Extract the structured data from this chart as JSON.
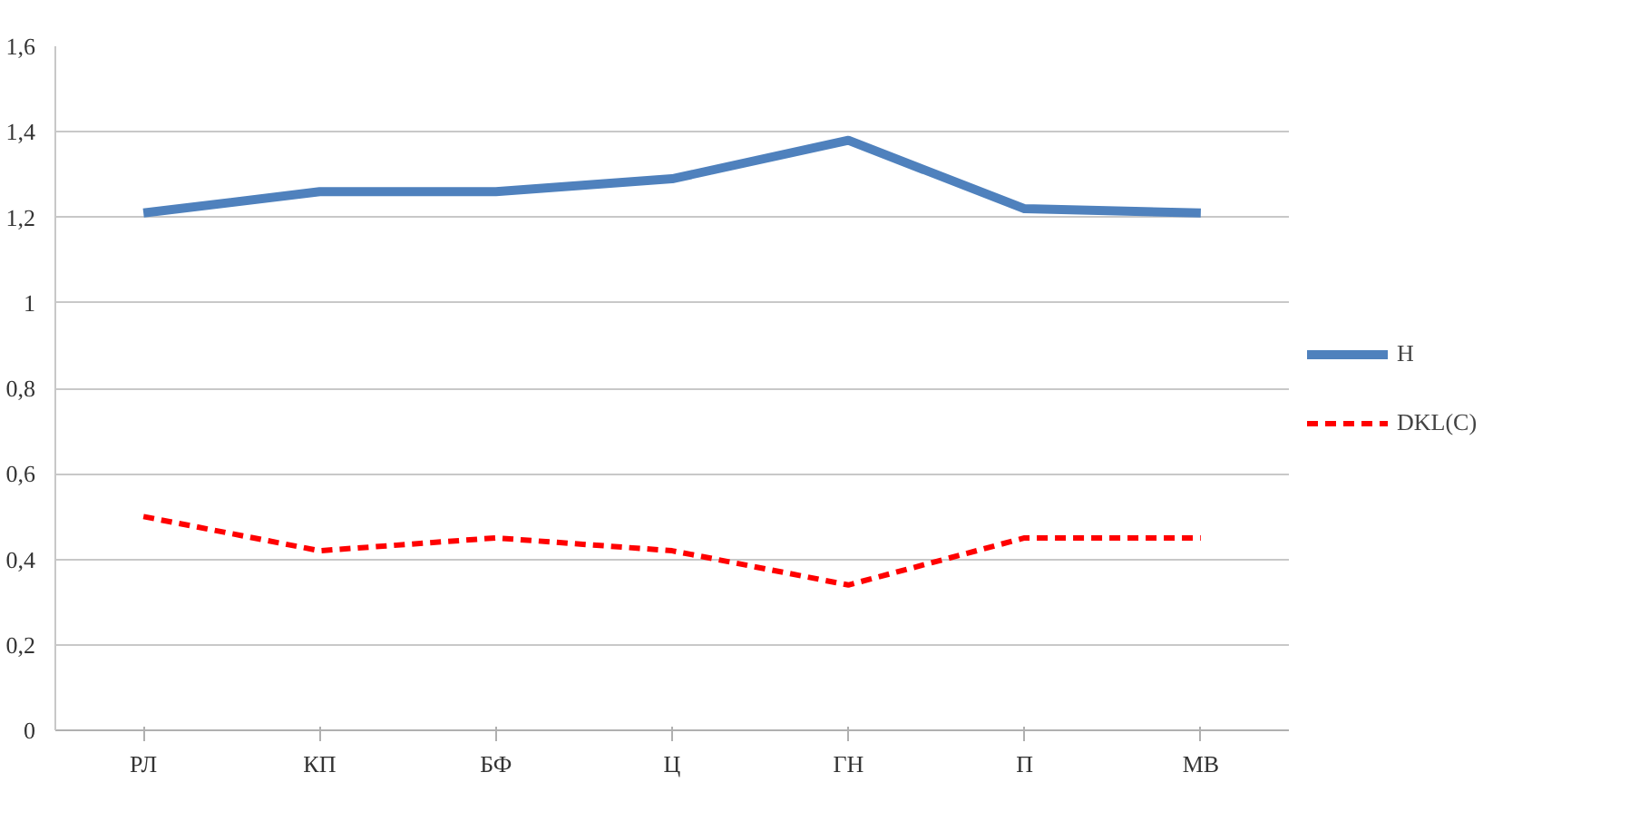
{
  "chart_data": {
    "type": "line",
    "categories": [
      "РЛ",
      "КП",
      "БФ",
      "Ц",
      "ГН",
      "П",
      "МВ"
    ],
    "series": [
      {
        "name": "H",
        "color": "#4f81bd",
        "values": [
          1.21,
          1.26,
          1.26,
          1.29,
          1.38,
          1.22,
          1.21
        ],
        "line_style": "solid"
      },
      {
        "name": "DKL(C)",
        "color": "#ff0000",
        "values": [
          0.5,
          0.42,
          0.45,
          0.42,
          0.34,
          0.45,
          0.45
        ],
        "line_style": "dashed"
      }
    ],
    "ylim": [
      0,
      1.6
    ],
    "yticks": [
      0,
      {
        "value": 0.2,
        "label": "0,2"
      },
      {
        "value": 0.4,
        "label": "0,4"
      },
      {
        "value": 0.6,
        "label": "0,6"
      },
      {
        "value": 0.8,
        "label": "0,8"
      },
      1,
      {
        "value": 1.2,
        "label": "1,2"
      },
      {
        "value": 1.4,
        "label": "1,4"
      },
      {
        "value": 1.6,
        "label": "1,6"
      }
    ],
    "grid": "y",
    "legend": "right",
    "marker": "none"
  }
}
